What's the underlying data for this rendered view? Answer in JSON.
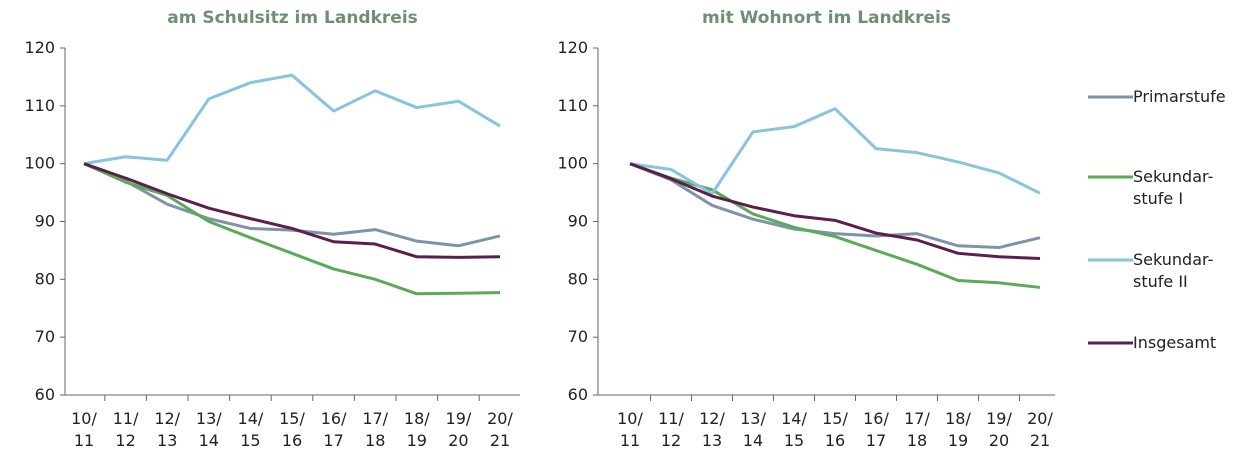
{
  "chart_data": [
    {
      "type": "line",
      "title": "am Schulsitz im Landkreis",
      "categories": [
        "10/\n11",
        "11/\n12",
        "12/\n13",
        "13/\n14",
        "14/\n15",
        "15/\n16",
        "16/\n17",
        "17/\n18",
        "18/\n19",
        "19/\n20",
        "20/\n21"
      ],
      "ylim": [
        60,
        120
      ],
      "yticks": [
        60,
        70,
        80,
        90,
        100,
        110,
        120
      ],
      "series": [
        {
          "name": "Primarstufe",
          "color": "#7f93a8",
          "values": [
            100,
            97,
            93,
            90.5,
            88.8,
            88.5,
            87.8,
            88.6,
            86.6,
            85.8,
            87.5
          ]
        },
        {
          "name": "Sekundar-\nstufe I",
          "color": "#5aaa5a",
          "values": [
            100,
            96.8,
            94.5,
            90,
            87.2,
            84.5,
            81.8,
            80,
            77.5,
            77.6,
            77.7
          ]
        },
        {
          "name": "Sekundar-\nstufe II",
          "color": "#88c4dd",
          "values": [
            100,
            101.2,
            100.6,
            111.2,
            114,
            115.3,
            109.1,
            112.6,
            109.7,
            110.8,
            106.5
          ]
        },
        {
          "name": "Insgesamt",
          "color": "#5b1f4d",
          "values": [
            100,
            97.5,
            94.8,
            92.3,
            90.5,
            88.8,
            86.5,
            86.1,
            83.9,
            83.8,
            83.9
          ]
        }
      ]
    },
    {
      "type": "line",
      "title": "mit Wohnort im Landkreis",
      "categories": [
        "10/\n11",
        "11/\n12",
        "12/\n13",
        "13/\n14",
        "14/\n15",
        "15/\n16",
        "16/\n17",
        "17/\n18",
        "18/\n19",
        "19/\n20",
        "20/\n21"
      ],
      "ylim": [
        60,
        120
      ],
      "yticks": [
        60,
        70,
        80,
        90,
        100,
        110,
        120
      ],
      "series": [
        {
          "name": "Primarstufe",
          "color": "#7f93a8",
          "values": [
            100,
            97.2,
            92.8,
            90.4,
            88.7,
            87.9,
            87.5,
            87.9,
            85.8,
            85.5,
            87.2
          ]
        },
        {
          "name": "Sekundar-\nstufe I",
          "color": "#5aaa5a",
          "values": [
            100,
            97.5,
            95.5,
            91.3,
            89,
            87.4,
            85,
            82.6,
            79.8,
            79.4,
            78.6
          ]
        },
        {
          "name": "Sekundar-\nstufe II",
          "color": "#88c4dd",
          "values": [
            100,
            99,
            94.8,
            105.5,
            106.4,
            109.5,
            102.6,
            101.9,
            100.3,
            98.4,
            94.9
          ]
        },
        {
          "name": "Insgesamt",
          "color": "#5b1f4d",
          "values": [
            100,
            97.4,
            94.4,
            92.5,
            91,
            90.2,
            88,
            86.8,
            84.5,
            83.9,
            83.6
          ]
        }
      ]
    }
  ]
}
